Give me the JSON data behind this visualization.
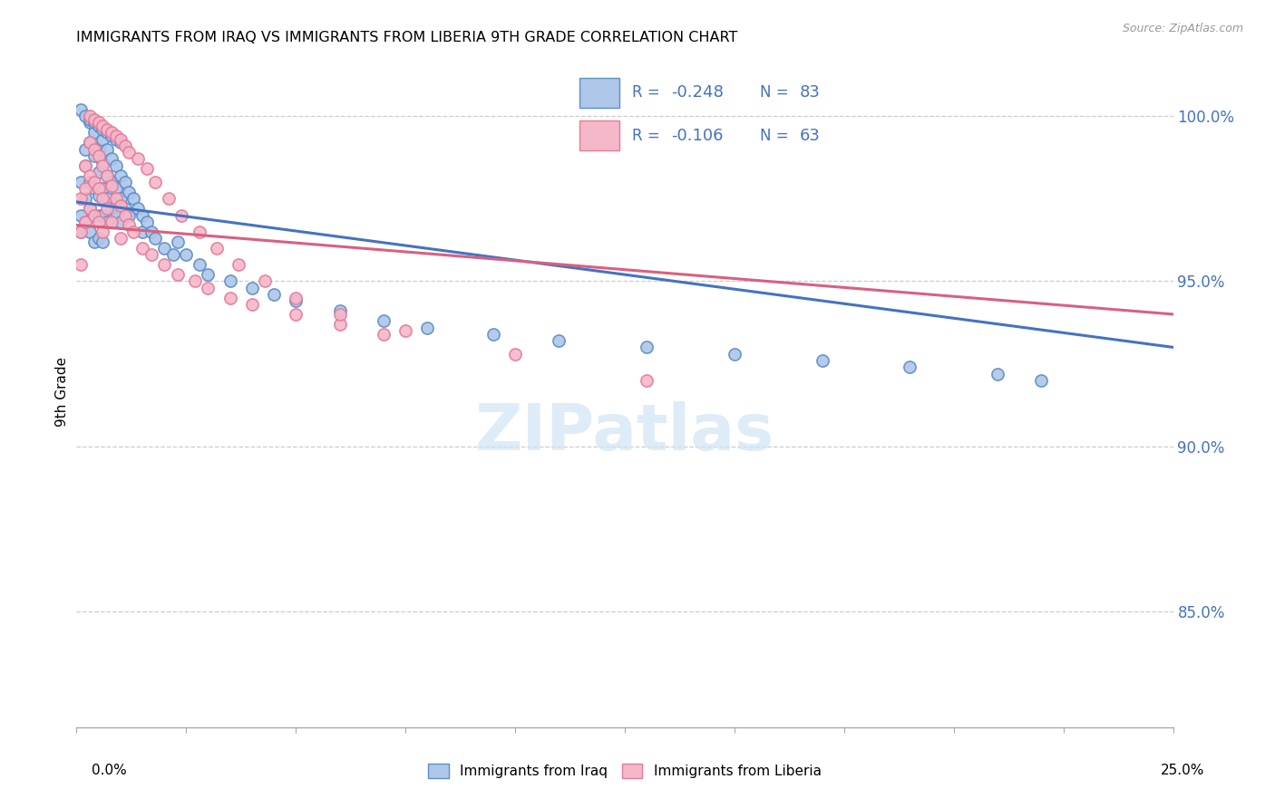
{
  "title": "IMMIGRANTS FROM IRAQ VS IMMIGRANTS FROM LIBERIA 9TH GRADE CORRELATION CHART",
  "source": "Source: ZipAtlas.com",
  "ylabel": "9th Grade",
  "y_ticks": [
    0.85,
    0.9,
    0.95,
    1.0
  ],
  "y_tick_labels": [
    "85.0%",
    "90.0%",
    "95.0%",
    "100.0%"
  ],
  "x_min": 0.0,
  "x_max": 0.25,
  "y_min": 0.815,
  "y_max": 1.018,
  "iraq_color": "#aec6e8",
  "liberia_color": "#f4b8c8",
  "iraq_edge_color": "#5b8fc9",
  "liberia_edge_color": "#e87a9a",
  "iraq_line_color": "#4472c4",
  "liberia_line_color": "#d96080",
  "legend_color": "#4472c4",
  "watermark_color": "#d0e4f5",
  "iraq_scatter_x": [
    0.001,
    0.001,
    0.001,
    0.002,
    0.002,
    0.002,
    0.002,
    0.003,
    0.003,
    0.003,
    0.003,
    0.003,
    0.004,
    0.004,
    0.004,
    0.004,
    0.004,
    0.005,
    0.005,
    0.005,
    0.005,
    0.005,
    0.005,
    0.006,
    0.006,
    0.006,
    0.006,
    0.006,
    0.007,
    0.007,
    0.007,
    0.007,
    0.008,
    0.008,
    0.008,
    0.009,
    0.009,
    0.009,
    0.01,
    0.01,
    0.01,
    0.011,
    0.011,
    0.012,
    0.012,
    0.013,
    0.014,
    0.015,
    0.015,
    0.016,
    0.017,
    0.018,
    0.02,
    0.022,
    0.023,
    0.025,
    0.028,
    0.03,
    0.035,
    0.04,
    0.045,
    0.05,
    0.06,
    0.07,
    0.08,
    0.095,
    0.11,
    0.13,
    0.15,
    0.17,
    0.19,
    0.21,
    0.22,
    0.001,
    0.002,
    0.003,
    0.004,
    0.005,
    0.006,
    0.007,
    0.008,
    0.009,
    0.01
  ],
  "iraq_scatter_y": [
    0.98,
    0.97,
    0.965,
    0.99,
    0.985,
    0.975,
    0.968,
    0.998,
    0.992,
    0.98,
    0.972,
    0.965,
    0.995,
    0.988,
    0.978,
    0.97,
    0.962,
    0.997,
    0.99,
    0.983,
    0.976,
    0.97,
    0.963,
    0.993,
    0.986,
    0.978,
    0.97,
    0.962,
    0.99,
    0.982,
    0.975,
    0.968,
    0.987,
    0.98,
    0.972,
    0.985,
    0.978,
    0.971,
    0.982,
    0.975,
    0.968,
    0.98,
    0.972,
    0.977,
    0.97,
    0.975,
    0.972,
    0.97,
    0.965,
    0.968,
    0.965,
    0.963,
    0.96,
    0.958,
    0.962,
    0.958,
    0.955,
    0.952,
    0.95,
    0.948,
    0.946,
    0.944,
    0.941,
    0.938,
    0.936,
    0.934,
    0.932,
    0.93,
    0.928,
    0.926,
    0.924,
    0.922,
    0.92,
    1.002,
    1.0,
    0.999,
    0.998,
    0.997,
    0.996,
    0.995,
    0.994,
    0.993,
    0.992
  ],
  "liberia_scatter_x": [
    0.001,
    0.001,
    0.001,
    0.002,
    0.002,
    0.002,
    0.003,
    0.003,
    0.003,
    0.004,
    0.004,
    0.004,
    0.005,
    0.005,
    0.005,
    0.006,
    0.006,
    0.006,
    0.007,
    0.007,
    0.008,
    0.008,
    0.009,
    0.01,
    0.01,
    0.011,
    0.012,
    0.013,
    0.015,
    0.017,
    0.02,
    0.023,
    0.027,
    0.03,
    0.035,
    0.04,
    0.05,
    0.06,
    0.07,
    0.003,
    0.004,
    0.005,
    0.006,
    0.007,
    0.008,
    0.009,
    0.01,
    0.011,
    0.012,
    0.014,
    0.016,
    0.018,
    0.021,
    0.024,
    0.028,
    0.032,
    0.037,
    0.043,
    0.05,
    0.06,
    0.075,
    0.1,
    0.13
  ],
  "liberia_scatter_y": [
    0.975,
    0.965,
    0.955,
    0.985,
    0.978,
    0.968,
    0.992,
    0.982,
    0.972,
    0.99,
    0.98,
    0.97,
    0.988,
    0.978,
    0.968,
    0.985,
    0.975,
    0.965,
    0.982,
    0.972,
    0.979,
    0.968,
    0.975,
    0.973,
    0.963,
    0.97,
    0.967,
    0.965,
    0.96,
    0.958,
    0.955,
    0.952,
    0.95,
    0.948,
    0.945,
    0.943,
    0.94,
    0.937,
    0.934,
    1.0,
    0.999,
    0.998,
    0.997,
    0.996,
    0.995,
    0.994,
    0.993,
    0.991,
    0.989,
    0.987,
    0.984,
    0.98,
    0.975,
    0.97,
    0.965,
    0.96,
    0.955,
    0.95,
    0.945,
    0.94,
    0.935,
    0.928,
    0.92
  ],
  "iraq_line_x0": 0.0,
  "iraq_line_y0": 0.974,
  "iraq_line_x1": 0.25,
  "iraq_line_y1": 0.93,
  "liberia_line_x0": 0.0,
  "liberia_line_y0": 0.967,
  "liberia_line_x1": 0.25,
  "liberia_line_y1": 0.94
}
